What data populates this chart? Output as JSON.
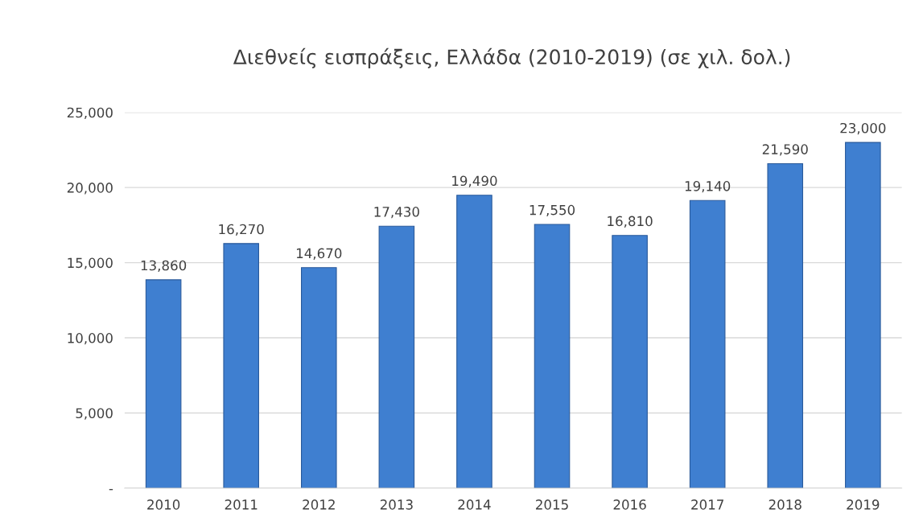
{
  "chart_data": {
    "type": "bar",
    "title": "Διεθνείς εισπράξεις, Ελλάδα (2010-2019) (σε χιλ. δολ.)",
    "categories": [
      "2010",
      "2011",
      "2012",
      "2013",
      "2014",
      "2015",
      "2016",
      "2017",
      "2018",
      "2019"
    ],
    "values": [
      13860,
      16270,
      14670,
      17430,
      19490,
      17550,
      16810,
      19140,
      21590,
      23000
    ],
    "value_labels": [
      "13,860",
      "16,270",
      "14,670",
      "17,430",
      "19,490",
      "17,550",
      "16,810",
      "19,140",
      "21,590",
      "23,000"
    ],
    "color": "#3f7fd0",
    "ylim": [
      0,
      25000
    ],
    "yticks": [
      {
        "value": 0,
        "label": "-"
      },
      {
        "value": 5000,
        "label": "5,000"
      },
      {
        "value": 10000,
        "label": "10,000"
      },
      {
        "value": 15000,
        "label": "15,000"
      },
      {
        "value": 20000,
        "label": "20,000"
      },
      {
        "value": 25000,
        "label": "25,000"
      }
    ],
    "grid": "y",
    "legend": false
  }
}
